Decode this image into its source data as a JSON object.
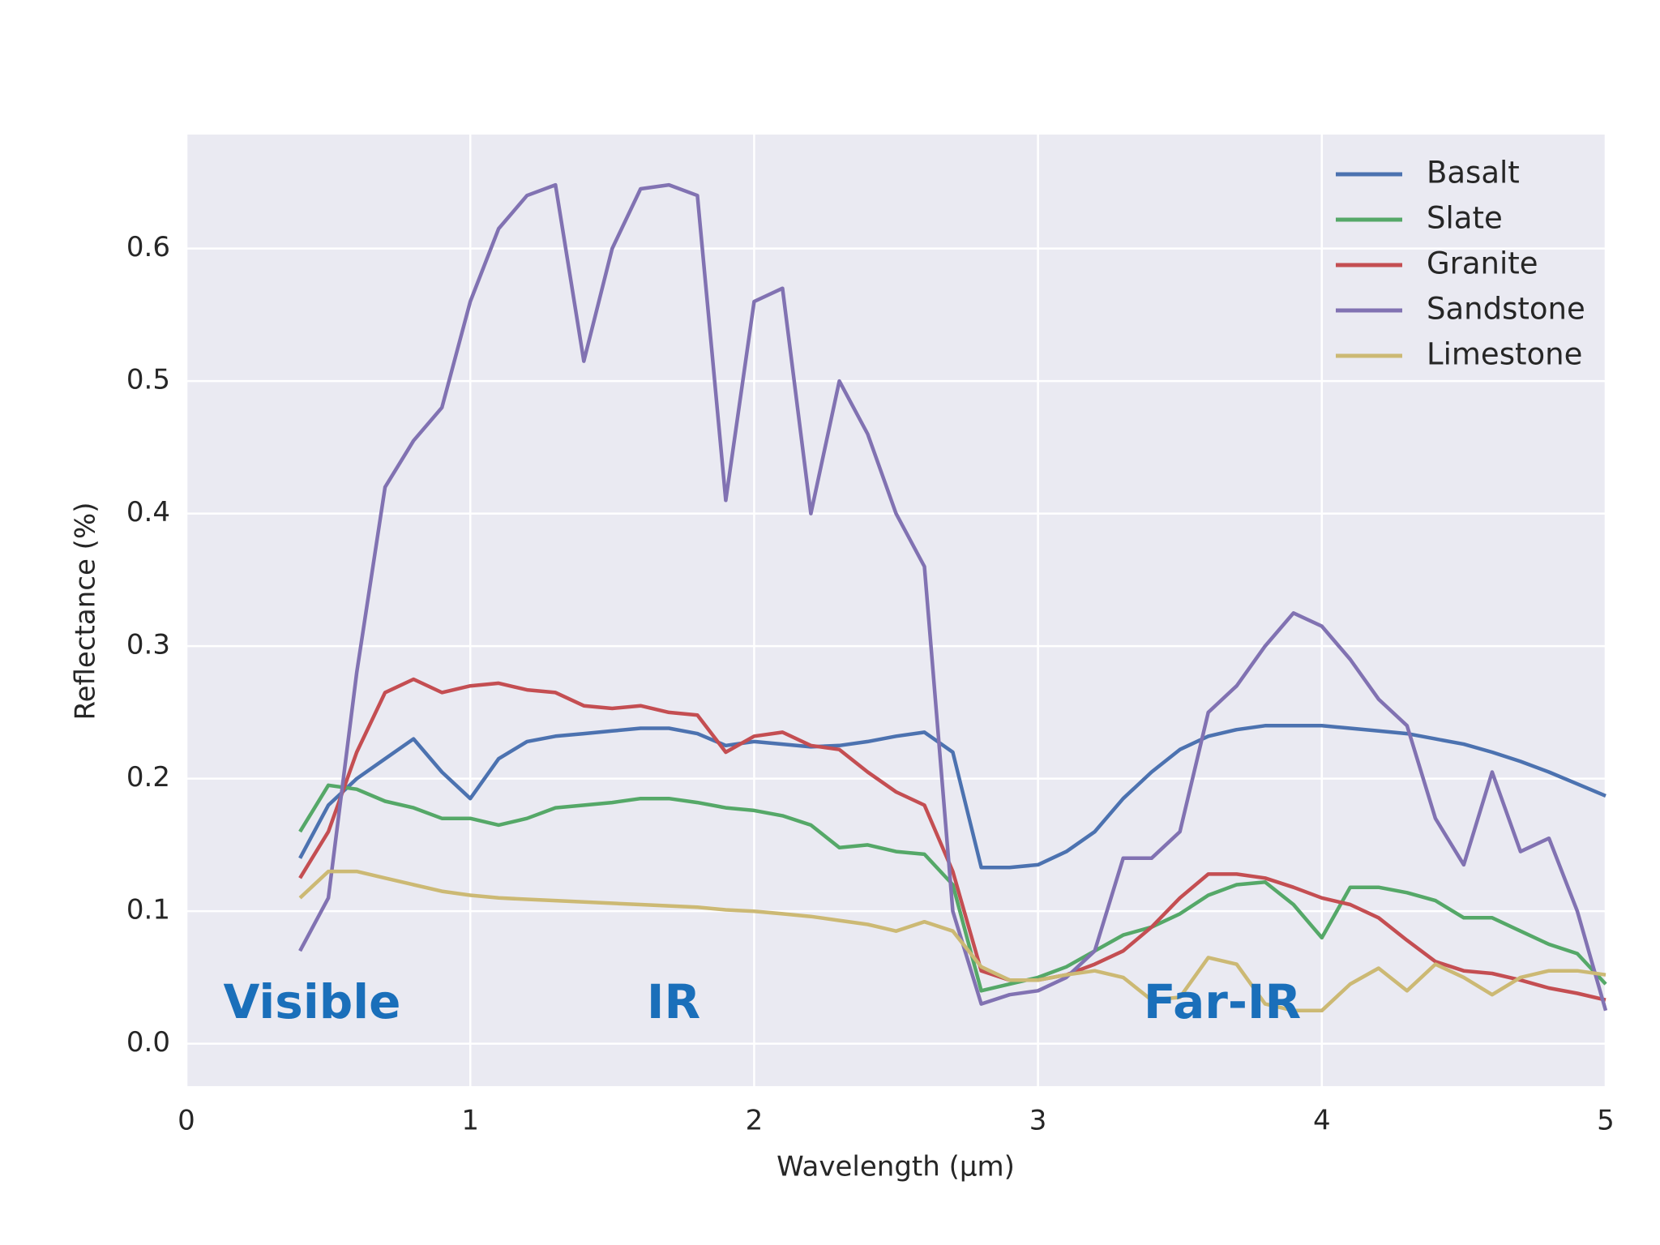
{
  "chart_data": {
    "type": "line",
    "xlabel": "Wavelength (μm)",
    "ylabel": "Reflectance (%)",
    "x": [
      0.4,
      0.5,
      0.6,
      0.7,
      0.8,
      0.9,
      1.0,
      1.1,
      1.2,
      1.3,
      1.4,
      1.5,
      1.6,
      1.7,
      1.8,
      1.9,
      2.0,
      2.1,
      2.2,
      2.3,
      2.4,
      2.5,
      2.6,
      2.7,
      2.8,
      2.9,
      3.0,
      3.1,
      3.2,
      3.3,
      3.4,
      3.5,
      3.6,
      3.7,
      3.8,
      3.9,
      4.0,
      4.1,
      4.2,
      4.3,
      4.4,
      4.5,
      4.6,
      4.7,
      4.8,
      4.9,
      5.0
    ],
    "series": [
      {
        "name": "Basalt",
        "color": "#4c72b0",
        "values": [
          0.14,
          0.18,
          0.2,
          0.215,
          0.23,
          0.205,
          0.185,
          0.215,
          0.228,
          0.232,
          0.234,
          0.236,
          0.238,
          0.238,
          0.234,
          0.225,
          0.228,
          0.226,
          0.224,
          0.225,
          0.228,
          0.232,
          0.235,
          0.22,
          0.133,
          0.133,
          0.135,
          0.145,
          0.16,
          0.185,
          0.205,
          0.222,
          0.232,
          0.237,
          0.24,
          0.24,
          0.24,
          0.238,
          0.236,
          0.234,
          0.23,
          0.226,
          0.22,
          0.213,
          0.205,
          0.196,
          0.187
        ]
      },
      {
        "name": "Slate",
        "color": "#55a868",
        "values": [
          0.16,
          0.195,
          0.192,
          0.183,
          0.178,
          0.17,
          0.17,
          0.165,
          0.17,
          0.178,
          0.18,
          0.182,
          0.185,
          0.185,
          0.182,
          0.178,
          0.176,
          0.172,
          0.165,
          0.148,
          0.15,
          0.145,
          0.143,
          0.12,
          0.04,
          0.045,
          0.05,
          0.058,
          0.07,
          0.082,
          0.088,
          0.098,
          0.112,
          0.12,
          0.122,
          0.105,
          0.08,
          0.118,
          0.118,
          0.114,
          0.108,
          0.095,
          0.095,
          0.085,
          0.075,
          0.068,
          0.045
        ]
      },
      {
        "name": "Granite",
        "color": "#c44e52",
        "values": [
          0.125,
          0.16,
          0.22,
          0.265,
          0.275,
          0.265,
          0.27,
          0.272,
          0.267,
          0.265,
          0.255,
          0.253,
          0.255,
          0.25,
          0.248,
          0.22,
          0.232,
          0.235,
          0.225,
          0.222,
          0.205,
          0.19,
          0.18,
          0.13,
          0.055,
          0.048,
          0.048,
          0.052,
          0.06,
          0.07,
          0.088,
          0.11,
          0.128,
          0.128,
          0.125,
          0.118,
          0.11,
          0.105,
          0.095,
          0.078,
          0.062,
          0.055,
          0.053,
          0.048,
          0.042,
          0.038,
          0.033
        ]
      },
      {
        "name": "Sandstone",
        "color": "#8172b2",
        "values": [
          0.07,
          0.11,
          0.28,
          0.42,
          0.455,
          0.48,
          0.56,
          0.615,
          0.64,
          0.648,
          0.515,
          0.6,
          0.645,
          0.648,
          0.64,
          0.41,
          0.56,
          0.57,
          0.4,
          0.5,
          0.46,
          0.4,
          0.36,
          0.1,
          0.03,
          0.037,
          0.04,
          0.05,
          0.07,
          0.14,
          0.14,
          0.16,
          0.25,
          0.27,
          0.3,
          0.325,
          0.315,
          0.29,
          0.26,
          0.24,
          0.17,
          0.135,
          0.205,
          0.145,
          0.155,
          0.1,
          0.025
        ]
      },
      {
        "name": "Limestone",
        "color": "#ccb974",
        "values": [
          0.11,
          0.13,
          0.13,
          0.125,
          0.12,
          0.115,
          0.112,
          0.11,
          0.109,
          0.108,
          0.107,
          0.106,
          0.105,
          0.104,
          0.103,
          0.101,
          0.1,
          0.098,
          0.096,
          0.093,
          0.09,
          0.085,
          0.092,
          0.085,
          0.058,
          0.048,
          0.048,
          0.052,
          0.055,
          0.05,
          0.033,
          0.035,
          0.065,
          0.06,
          0.03,
          0.025,
          0.025,
          0.045,
          0.057,
          0.04,
          0.06,
          0.05,
          0.037,
          0.05,
          0.055,
          0.055,
          0.052
        ]
      }
    ],
    "xlim": [
      0,
      5
    ],
    "xticks": [
      0,
      1,
      2,
      3,
      4,
      5
    ],
    "ylim": [
      -0.032,
      0.686
    ],
    "yticks": [
      {
        "value": 0,
        "label": "0.0"
      },
      0.1,
      0.2,
      0.3,
      0.4,
      0.5,
      0.6
    ],
    "grid": true,
    "legend": "upper right",
    "annotations": [
      "Visible",
      "IR",
      "Far-IR"
    ],
    "annotation_color": "#1a6fba"
  }
}
